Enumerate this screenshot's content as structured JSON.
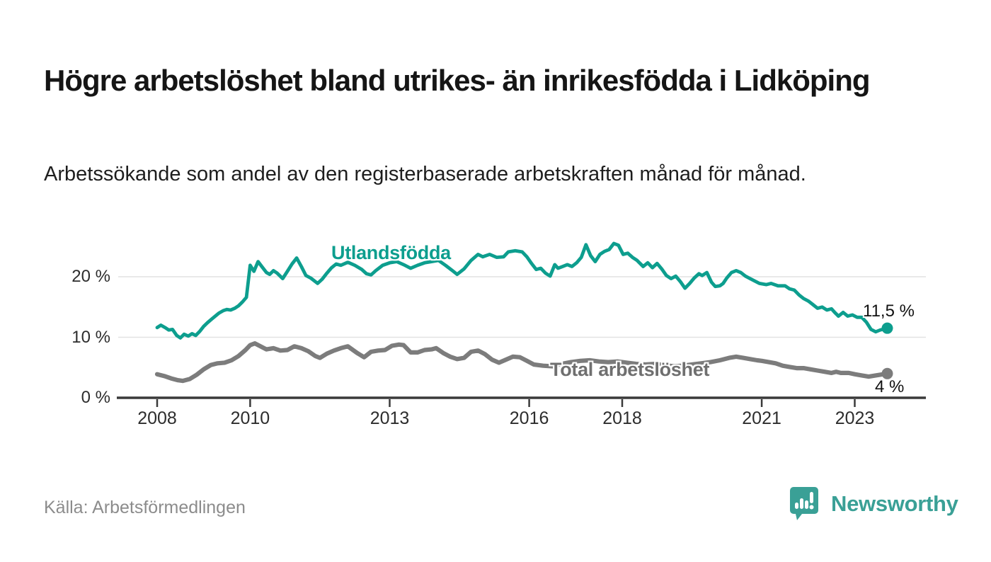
{
  "page": {
    "title": "Högre arbetslöshet bland utrikes- än inrikesfödda i Lidköping",
    "subtitle": "Arbetssökande som andel av den registerbaserade arbetskraften månad för månad.",
    "source": "Källa: Arbetsförmedlingen",
    "brand": {
      "name": "Newsworthy",
      "color": "#3aa096"
    }
  },
  "chart_data": {
    "type": "line",
    "title": "Högre arbetslöshet bland utrikes- än inrikesfödda i Lidköping",
    "subtitle": "Arbetssökande som andel av den registerbaserade arbetskraften månad för månad.",
    "xlabel": "",
    "ylabel": "",
    "grid": "horizontal",
    "legend": "inline-labels-on-lines",
    "x_axis": {
      "ticks": [
        2008,
        2010,
        2013,
        2016,
        2018,
        2021,
        2023
      ],
      "tick_labels": [
        "2008",
        "2010",
        "2013",
        "2016",
        "2018",
        "2021",
        "2023"
      ],
      "range": [
        2007.1,
        2024.6
      ]
    },
    "y_axis": {
      "ticks": [
        0,
        10,
        20
      ],
      "tick_labels": [
        "0 %",
        "10 %",
        "20 %"
      ],
      "unit": "%",
      "range": [
        0,
        27
      ]
    },
    "series": [
      {
        "name": "Utlandsfödda",
        "color": "#0d9e8e",
        "end_label": "11,5 %",
        "end_value": 11.5,
        "points": [
          [
            2008.0,
            11.6
          ],
          [
            2008.08,
            12.0
          ],
          [
            2008.17,
            11.6
          ],
          [
            2008.25,
            11.2
          ],
          [
            2008.33,
            11.3
          ],
          [
            2008.42,
            10.3
          ],
          [
            2008.5,
            9.9
          ],
          [
            2008.58,
            10.5
          ],
          [
            2008.67,
            10.2
          ],
          [
            2008.75,
            10.6
          ],
          [
            2008.83,
            10.3
          ],
          [
            2008.92,
            11.0
          ],
          [
            2009.0,
            11.8
          ],
          [
            2009.08,
            12.4
          ],
          [
            2009.17,
            13.0
          ],
          [
            2009.25,
            13.5
          ],
          [
            2009.33,
            14.0
          ],
          [
            2009.42,
            14.4
          ],
          [
            2009.5,
            14.6
          ],
          [
            2009.58,
            14.5
          ],
          [
            2009.67,
            14.8
          ],
          [
            2009.75,
            15.2
          ],
          [
            2009.83,
            15.8
          ],
          [
            2009.92,
            16.6
          ],
          [
            2010.0,
            21.9
          ],
          [
            2010.08,
            20.9
          ],
          [
            2010.17,
            22.5
          ],
          [
            2010.25,
            21.7
          ],
          [
            2010.35,
            20.7
          ],
          [
            2010.42,
            20.4
          ],
          [
            2010.5,
            21.0
          ],
          [
            2010.58,
            20.6
          ],
          [
            2010.7,
            19.7
          ],
          [
            2010.8,
            20.9
          ],
          [
            2010.9,
            22.1
          ],
          [
            2011.0,
            23.1
          ],
          [
            2011.1,
            21.7
          ],
          [
            2011.2,
            20.2
          ],
          [
            2011.3,
            19.8
          ],
          [
            2011.45,
            18.9
          ],
          [
            2011.55,
            19.6
          ],
          [
            2011.65,
            20.6
          ],
          [
            2011.75,
            21.5
          ],
          [
            2011.85,
            22.1
          ],
          [
            2011.95,
            21.9
          ],
          [
            2012.1,
            22.4
          ],
          [
            2012.25,
            21.9
          ],
          [
            2012.4,
            21.2
          ],
          [
            2012.5,
            20.5
          ],
          [
            2012.6,
            20.3
          ],
          [
            2012.7,
            21.0
          ],
          [
            2012.85,
            21.9
          ],
          [
            2013.0,
            22.3
          ],
          [
            2013.15,
            22.5
          ],
          [
            2013.3,
            22.0
          ],
          [
            2013.45,
            21.4
          ],
          [
            2013.6,
            21.9
          ],
          [
            2013.75,
            22.3
          ],
          [
            2013.9,
            22.5
          ],
          [
            2014.05,
            22.7
          ],
          [
            2014.2,
            21.9
          ],
          [
            2014.35,
            21.0
          ],
          [
            2014.45,
            20.4
          ],
          [
            2014.6,
            21.3
          ],
          [
            2014.75,
            22.7
          ],
          [
            2014.9,
            23.7
          ],
          [
            2015.0,
            23.3
          ],
          [
            2015.15,
            23.7
          ],
          [
            2015.3,
            23.2
          ],
          [
            2015.45,
            23.3
          ],
          [
            2015.55,
            24.1
          ],
          [
            2015.7,
            24.3
          ],
          [
            2015.85,
            24.1
          ],
          [
            2015.95,
            23.3
          ],
          [
            2016.05,
            22.2
          ],
          [
            2016.15,
            21.2
          ],
          [
            2016.25,
            21.4
          ],
          [
            2016.35,
            20.6
          ],
          [
            2016.45,
            20.1
          ],
          [
            2016.55,
            22.0
          ],
          [
            2016.62,
            21.4
          ],
          [
            2016.72,
            21.7
          ],
          [
            2016.82,
            22.0
          ],
          [
            2016.92,
            21.7
          ],
          [
            2017.02,
            22.3
          ],
          [
            2017.12,
            23.2
          ],
          [
            2017.22,
            25.3
          ],
          [
            2017.32,
            23.5
          ],
          [
            2017.42,
            22.5
          ],
          [
            2017.52,
            23.7
          ],
          [
            2017.62,
            24.2
          ],
          [
            2017.72,
            24.5
          ],
          [
            2017.82,
            25.5
          ],
          [
            2017.92,
            25.2
          ],
          [
            2018.02,
            23.7
          ],
          [
            2018.12,
            23.9
          ],
          [
            2018.22,
            23.2
          ],
          [
            2018.32,
            22.7
          ],
          [
            2018.45,
            21.7
          ],
          [
            2018.55,
            22.3
          ],
          [
            2018.65,
            21.5
          ],
          [
            2018.75,
            22.2
          ],
          [
            2018.85,
            21.3
          ],
          [
            2018.95,
            20.2
          ],
          [
            2019.05,
            19.7
          ],
          [
            2019.15,
            20.1
          ],
          [
            2019.25,
            19.2
          ],
          [
            2019.35,
            18.1
          ],
          [
            2019.45,
            18.9
          ],
          [
            2019.55,
            19.8
          ],
          [
            2019.65,
            20.5
          ],
          [
            2019.72,
            20.2
          ],
          [
            2019.82,
            20.7
          ],
          [
            2019.92,
            19.1
          ],
          [
            2020.0,
            18.4
          ],
          [
            2020.1,
            18.5
          ],
          [
            2020.17,
            18.9
          ],
          [
            2020.25,
            19.8
          ],
          [
            2020.35,
            20.7
          ],
          [
            2020.45,
            21.0
          ],
          [
            2020.55,
            20.7
          ],
          [
            2020.65,
            20.1
          ],
          [
            2020.75,
            19.7
          ],
          [
            2020.85,
            19.3
          ],
          [
            2020.95,
            18.9
          ],
          [
            2021.1,
            18.7
          ],
          [
            2021.2,
            18.9
          ],
          [
            2021.35,
            18.5
          ],
          [
            2021.5,
            18.5
          ],
          [
            2021.6,
            18.0
          ],
          [
            2021.7,
            17.8
          ],
          [
            2021.8,
            17.0
          ],
          [
            2021.9,
            16.4
          ],
          [
            2022.0,
            16.0
          ],
          [
            2022.1,
            15.4
          ],
          [
            2022.2,
            14.8
          ],
          [
            2022.3,
            15.0
          ],
          [
            2022.4,
            14.5
          ],
          [
            2022.5,
            14.7
          ],
          [
            2022.57,
            14.1
          ],
          [
            2022.65,
            13.5
          ],
          [
            2022.75,
            14.1
          ],
          [
            2022.85,
            13.5
          ],
          [
            2022.95,
            13.7
          ],
          [
            2023.05,
            13.3
          ],
          [
            2023.15,
            13.3
          ],
          [
            2023.25,
            12.5
          ],
          [
            2023.35,
            11.3
          ],
          [
            2023.45,
            10.9
          ],
          [
            2023.55,
            11.2
          ],
          [
            2023.7,
            11.5
          ]
        ]
      },
      {
        "name": "Total arbetslöshet",
        "color": "#7c7c7c",
        "end_label": "4 %",
        "end_value": 4,
        "points": [
          [
            2008.0,
            3.9
          ],
          [
            2008.15,
            3.6
          ],
          [
            2008.3,
            3.2
          ],
          [
            2008.45,
            2.9
          ],
          [
            2008.55,
            2.8
          ],
          [
            2008.7,
            3.1
          ],
          [
            2008.85,
            3.8
          ],
          [
            2009.0,
            4.7
          ],
          [
            2009.15,
            5.4
          ],
          [
            2009.3,
            5.7
          ],
          [
            2009.45,
            5.8
          ],
          [
            2009.6,
            6.2
          ],
          [
            2009.75,
            6.9
          ],
          [
            2009.9,
            7.9
          ],
          [
            2010.0,
            8.7
          ],
          [
            2010.1,
            9.0
          ],
          [
            2010.2,
            8.6
          ],
          [
            2010.35,
            8.0
          ],
          [
            2010.5,
            8.2
          ],
          [
            2010.65,
            7.8
          ],
          [
            2010.8,
            7.9
          ],
          [
            2010.95,
            8.5
          ],
          [
            2011.1,
            8.2
          ],
          [
            2011.25,
            7.7
          ],
          [
            2011.4,
            6.9
          ],
          [
            2011.5,
            6.6
          ],
          [
            2011.65,
            7.3
          ],
          [
            2011.8,
            7.8
          ],
          [
            2011.95,
            8.2
          ],
          [
            2012.1,
            8.5
          ],
          [
            2012.3,
            7.4
          ],
          [
            2012.45,
            6.7
          ],
          [
            2012.6,
            7.6
          ],
          [
            2012.75,
            7.8
          ],
          [
            2012.9,
            7.9
          ],
          [
            2013.05,
            8.6
          ],
          [
            2013.2,
            8.8
          ],
          [
            2013.3,
            8.7
          ],
          [
            2013.45,
            7.5
          ],
          [
            2013.6,
            7.5
          ],
          [
            2013.75,
            7.9
          ],
          [
            2013.9,
            8.0
          ],
          [
            2014.0,
            8.2
          ],
          [
            2014.15,
            7.4
          ],
          [
            2014.3,
            6.8
          ],
          [
            2014.45,
            6.4
          ],
          [
            2014.6,
            6.6
          ],
          [
            2014.75,
            7.6
          ],
          [
            2014.9,
            7.8
          ],
          [
            2015.05,
            7.2
          ],
          [
            2015.2,
            6.3
          ],
          [
            2015.35,
            5.8
          ],
          [
            2015.5,
            6.3
          ],
          [
            2015.65,
            6.8
          ],
          [
            2015.8,
            6.7
          ],
          [
            2015.95,
            6.1
          ],
          [
            2016.1,
            5.5
          ],
          [
            2016.3,
            5.3
          ],
          [
            2016.5,
            5.2
          ],
          [
            2016.7,
            5.6
          ],
          [
            2016.9,
            5.9
          ],
          [
            2017.1,
            6.1
          ],
          [
            2017.3,
            6.2
          ],
          [
            2017.5,
            6.0
          ],
          [
            2017.7,
            5.9
          ],
          [
            2017.9,
            6.0
          ],
          [
            2018.1,
            5.8
          ],
          [
            2018.3,
            5.6
          ],
          [
            2018.5,
            5.5
          ],
          [
            2018.7,
            5.6
          ],
          [
            2018.9,
            5.4
          ],
          [
            2019.1,
            5.2
          ],
          [
            2019.3,
            5.3
          ],
          [
            2019.5,
            5.5
          ],
          [
            2019.7,
            5.7
          ],
          [
            2019.9,
            5.9
          ],
          [
            2020.1,
            6.2
          ],
          [
            2020.3,
            6.6
          ],
          [
            2020.45,
            6.8
          ],
          [
            2020.6,
            6.6
          ],
          [
            2020.75,
            6.4
          ],
          [
            2020.9,
            6.2
          ],
          [
            2021.0,
            6.1
          ],
          [
            2021.15,
            5.9
          ],
          [
            2021.3,
            5.7
          ],
          [
            2021.45,
            5.3
          ],
          [
            2021.6,
            5.1
          ],
          [
            2021.75,
            4.9
          ],
          [
            2021.9,
            4.9
          ],
          [
            2022.05,
            4.7
          ],
          [
            2022.2,
            4.5
          ],
          [
            2022.35,
            4.3
          ],
          [
            2022.5,
            4.1
          ],
          [
            2022.6,
            4.3
          ],
          [
            2022.7,
            4.1
          ],
          [
            2022.87,
            4.1
          ],
          [
            2023.0,
            3.9
          ],
          [
            2023.15,
            3.7
          ],
          [
            2023.3,
            3.5
          ],
          [
            2023.45,
            3.7
          ],
          [
            2023.7,
            4.0
          ]
        ]
      }
    ]
  },
  "colors": {
    "accent_teal": "#0d9e8e",
    "line_gray": "#7c7c7c",
    "axis": "#3a3a3a",
    "gridline": "#e2e2e2",
    "title_text": "#151515",
    "source_text": "#8c8c8c",
    "brand_teal": "#3aa096"
  }
}
